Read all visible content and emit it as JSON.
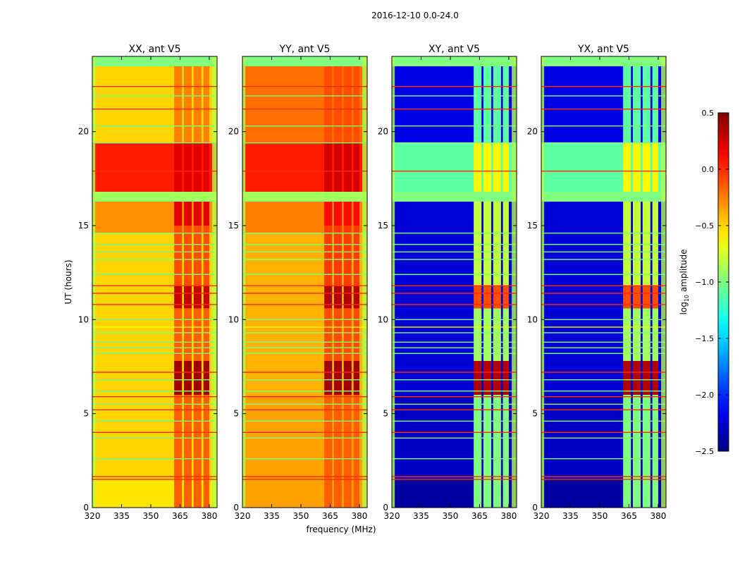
{
  "chart_data": {
    "type": "heatmap",
    "suptitle": "2016-12-10 0.0-24.0",
    "xlabel": "frequency (MHz)",
    "ylabel": "UT (hours)",
    "xlim": [
      320,
      384
    ],
    "ylim": [
      0,
      24
    ],
    "xticks": [
      "320",
      "335",
      "350",
      "365",
      "380"
    ],
    "xtick_values": [
      320,
      335,
      350,
      365,
      380
    ],
    "yticks": [
      "0",
      "5",
      "10",
      "15",
      "20"
    ],
    "ytick_values": [
      0,
      5,
      10,
      15,
      20
    ],
    "colorbar": {
      "label": "log10 amplitude",
      "label_main": "log",
      "label_sub": "10",
      "label_rest": " amplitude",
      "range": [
        -2.5,
        0.5
      ],
      "ticks": [
        "0.5",
        "0.0",
        "−0.5",
        "−1.0",
        "−1.5",
        "−2.0",
        "−2.5"
      ],
      "tick_values": [
        0.5,
        0.0,
        -0.5,
        -1.0,
        -1.5,
        -2.0,
        -2.5
      ]
    },
    "panels": [
      {
        "title": "XX, ant V5",
        "base": [
          {
            "t": [
              0,
              1.5
            ],
            "v": -0.55
          },
          {
            "t": [
              1.5,
              6
            ],
            "v": -0.5
          },
          {
            "t": [
              6,
              14.6
            ],
            "v": -0.5
          },
          {
            "t": [
              14.6,
              16.3
            ],
            "v": -0.3
          },
          {
            "t": [
              16.3,
              16.8
            ],
            "v": -0.9
          },
          {
            "t": [
              16.8,
              19.4
            ],
            "v": 0.05
          },
          {
            "t": [
              19.4,
              23.5
            ],
            "v": -0.5
          },
          {
            "t": [
              23.5,
              24
            ],
            "v": -1.0
          }
        ],
        "rfi_cols": [
          [
            362,
            366
          ],
          [
            367,
            371
          ],
          [
            372,
            376
          ],
          [
            377,
            380
          ]
        ],
        "rfi": [
          {
            "t": [
              0,
              6
            ],
            "v": -0.15
          },
          {
            "t": [
              6,
              7.8
            ],
            "v": 0.4
          },
          {
            "t": [
              7.8,
              10.6
            ],
            "v": -0.15
          },
          {
            "t": [
              10.6,
              11.8
            ],
            "v": 0.3
          },
          {
            "t": [
              11.8,
              15
            ],
            "v": -0.1
          },
          {
            "t": [
              15,
              16.3
            ],
            "v": 0.2
          },
          {
            "t": [
              16.3,
              16.8
            ],
            "v": -0.9
          },
          {
            "t": [
              16.8,
              19.4
            ],
            "v": 0.2
          },
          {
            "t": [
              19.4,
              23.5
            ],
            "v": -0.25
          }
        ]
      },
      {
        "title": "YY, ant V5",
        "base": [
          {
            "t": [
              0,
              1.5
            ],
            "v": -0.35
          },
          {
            "t": [
              1.5,
              6
            ],
            "v": -0.35
          },
          {
            "t": [
              6,
              14.6
            ],
            "v": -0.4
          },
          {
            "t": [
              14.6,
              16.3
            ],
            "v": -0.25
          },
          {
            "t": [
              16.3,
              16.8
            ],
            "v": -0.9
          },
          {
            "t": [
              16.8,
              19.4
            ],
            "v": 0.05
          },
          {
            "t": [
              19.4,
              23.5
            ],
            "v": -0.2
          },
          {
            "t": [
              23.5,
              24
            ],
            "v": -1.0
          }
        ],
        "rfi_cols": [
          [
            362,
            366
          ],
          [
            367,
            371
          ],
          [
            372,
            376
          ],
          [
            377,
            380
          ]
        ],
        "rfi": [
          {
            "t": [
              0,
              6
            ],
            "v": -0.15
          },
          {
            "t": [
              6,
              7.8
            ],
            "v": 0.4
          },
          {
            "t": [
              7.8,
              10.6
            ],
            "v": -0.1
          },
          {
            "t": [
              10.6,
              11.8
            ],
            "v": 0.35
          },
          {
            "t": [
              11.8,
              15
            ],
            "v": -0.05
          },
          {
            "t": [
              15,
              16.3
            ],
            "v": 0.1
          },
          {
            "t": [
              16.3,
              16.8
            ],
            "v": -0.9
          },
          {
            "t": [
              16.8,
              19.4
            ],
            "v": 0.25
          },
          {
            "t": [
              19.4,
              23.5
            ],
            "v": -0.1
          }
        ]
      },
      {
        "title": "XY, ant V5",
        "base": [
          {
            "t": [
              0,
              1.5
            ],
            "v": -2.4
          },
          {
            "t": [
              1.5,
              6
            ],
            "v": -2.3
          },
          {
            "t": [
              6,
              16.3
            ],
            "v": -2.25
          },
          {
            "t": [
              16.3,
              16.8
            ],
            "v": -1.0
          },
          {
            "t": [
              16.8,
              19.4
            ],
            "v": -1.1
          },
          {
            "t": [
              19.4,
              23.5
            ],
            "v": -2.2
          },
          {
            "t": [
              23.5,
              24
            ],
            "v": -1.0
          }
        ],
        "rfi_cols": [
          [
            362,
            366
          ],
          [
            367,
            371
          ],
          [
            372,
            376
          ],
          [
            377,
            380
          ]
        ],
        "rfi": [
          {
            "t": [
              0,
              6
            ],
            "v": -1.0
          },
          {
            "t": [
              6,
              7.8
            ],
            "v": 0.35
          },
          {
            "t": [
              7.8,
              10.6
            ],
            "v": -0.9
          },
          {
            "t": [
              10.6,
              11.8
            ],
            "v": -0.1
          },
          {
            "t": [
              11.8,
              16.3
            ],
            "v": -0.8
          },
          {
            "t": [
              16.3,
              16.8
            ],
            "v": -1.0
          },
          {
            "t": [
              16.8,
              19.4
            ],
            "v": -0.6
          },
          {
            "t": [
              19.4,
              23.5
            ],
            "v": -1.1
          }
        ]
      },
      {
        "title": "YX, ant V5",
        "base": [
          {
            "t": [
              0,
              1.5
            ],
            "v": -2.4
          },
          {
            "t": [
              1.5,
              6
            ],
            "v": -2.3
          },
          {
            "t": [
              6,
              16.3
            ],
            "v": -2.25
          },
          {
            "t": [
              16.3,
              16.8
            ],
            "v": -1.0
          },
          {
            "t": [
              16.8,
              19.4
            ],
            "v": -1.1
          },
          {
            "t": [
              19.4,
              23.5
            ],
            "v": -2.2
          },
          {
            "t": [
              23.5,
              24
            ],
            "v": -1.0
          }
        ],
        "rfi_cols": [
          [
            362,
            366
          ],
          [
            367,
            371
          ],
          [
            372,
            376
          ],
          [
            377,
            380
          ]
        ],
        "rfi": [
          {
            "t": [
              0,
              6
            ],
            "v": -1.0
          },
          {
            "t": [
              6,
              7.8
            ],
            "v": 0.35
          },
          {
            "t": [
              7.8,
              10.6
            ],
            "v": -0.9
          },
          {
            "t": [
              10.6,
              11.8
            ],
            "v": -0.1
          },
          {
            "t": [
              11.8,
              16.3
            ],
            "v": -0.8
          },
          {
            "t": [
              16.3,
              16.8
            ],
            "v": -1.0
          },
          {
            "t": [
              16.8,
              19.4
            ],
            "v": -0.6
          },
          {
            "t": [
              19.4,
              23.5
            ],
            "v": -1.1
          }
        ]
      }
    ],
    "flag_lines": [
      {
        "t": 1.5,
        "v": 0.0
      },
      {
        "t": 1.65,
        "v": 0.0
      },
      {
        "t": 2.6,
        "v": -1.0
      },
      {
        "t": 3.7,
        "v": -1.0
      },
      {
        "t": 4.0,
        "v": 0.0
      },
      {
        "t": 4.6,
        "v": -1.0
      },
      {
        "t": 5.2,
        "v": 0.0
      },
      {
        "t": 5.5,
        "v": -1.0
      },
      {
        "t": 5.9,
        "v": 0.0
      },
      {
        "t": 6.2,
        "v": -1.0
      },
      {
        "t": 6.8,
        "v": -1.0
      },
      {
        "t": 7.2,
        "v": 0.0
      },
      {
        "t": 8.2,
        "v": -1.0
      },
      {
        "t": 8.5,
        "v": -1.0
      },
      {
        "t": 8.8,
        "v": -1.0
      },
      {
        "t": 9.3,
        "v": -1.0
      },
      {
        "t": 9.6,
        "v": -0.6
      },
      {
        "t": 10.0,
        "v": -1.0
      },
      {
        "t": 10.8,
        "v": 0.0
      },
      {
        "t": 11.4,
        "v": 0.0
      },
      {
        "t": 11.8,
        "v": 0.0
      },
      {
        "t": 12.4,
        "v": -1.0
      },
      {
        "t": 13.2,
        "v": -1.0
      },
      {
        "t": 13.6,
        "v": -1.0
      },
      {
        "t": 14.0,
        "v": -1.0
      },
      {
        "t": 14.6,
        "v": -1.0
      },
      {
        "t": 16.3,
        "v": -1.0
      },
      {
        "t": 17.9,
        "v": 0.0
      },
      {
        "t": 19.4,
        "v": -1.0
      },
      {
        "t": 20.3,
        "v": -1.0
      },
      {
        "t": 21.2,
        "v": 0.0
      },
      {
        "t": 21.9,
        "v": -1.0
      },
      {
        "t": 22.4,
        "v": 0.0
      },
      {
        "t": 23.5,
        "v": -1.0
      }
    ]
  }
}
